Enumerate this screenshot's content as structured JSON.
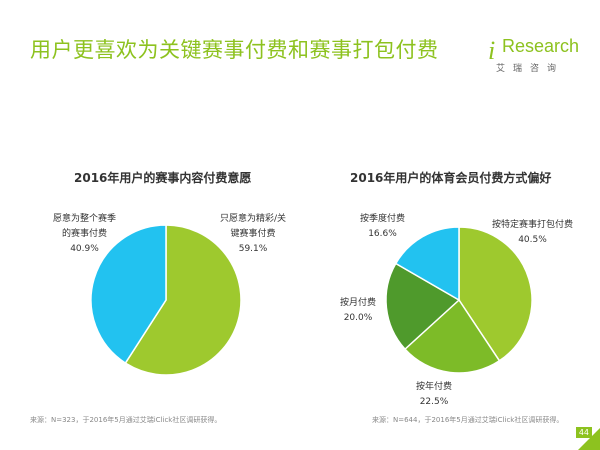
{
  "header": {
    "title": "用户更喜欢为关键赛事付费和赛事打包付费",
    "logo_letter": "i",
    "logo_text": "Research",
    "logo_tagline": "艾瑞咨询"
  },
  "colors": {
    "accent": "#8dc21f",
    "green": "#9ec92e",
    "cyan": "#22c2f0",
    "dark_green": "#4f9a2c",
    "mid_green": "#7dbb28"
  },
  "chart_data": [
    {
      "type": "pie",
      "title": "2016年用户的赛事内容付费意愿",
      "slices": [
        {
          "label_line1": "只愿意为精彩/关",
          "label_line2": "键赛事付费",
          "value": 59.1,
          "value_label": "59.1%",
          "color": "#9ec92e"
        },
        {
          "label_line1": "愿意为整个赛季",
          "label_line2": "的赛事付费",
          "value": 40.9,
          "value_label": "40.9%",
          "color": "#22c2f0"
        }
      ],
      "source": "来源：N=323，于2016年5月通过艾瑞iClick社区调研获得。"
    },
    {
      "type": "pie",
      "title": "2016年用户的体育会员付费方式偏好",
      "slices": [
        {
          "label_line1": "按特定赛事打包付费",
          "label_line2": "",
          "value": 40.5,
          "value_label": "40.5%",
          "color": "#9ec92e"
        },
        {
          "label_line1": "按年付费",
          "label_line2": "",
          "value": 22.5,
          "value_label": "22.5%",
          "color": "#7dbb28"
        },
        {
          "label_line1": "按月付费",
          "label_line2": "",
          "value": 20.0,
          "value_label": "20.0%",
          "color": "#4f9a2c"
        },
        {
          "label_line1": "按季度付费",
          "label_line2": "",
          "value": 16.6,
          "value_label": "16.6%",
          "color": "#22c2f0"
        }
      ],
      "source": "来源：N=644，于2016年5月通过艾瑞iClick社区调研获得。"
    }
  ],
  "page_number": "44"
}
